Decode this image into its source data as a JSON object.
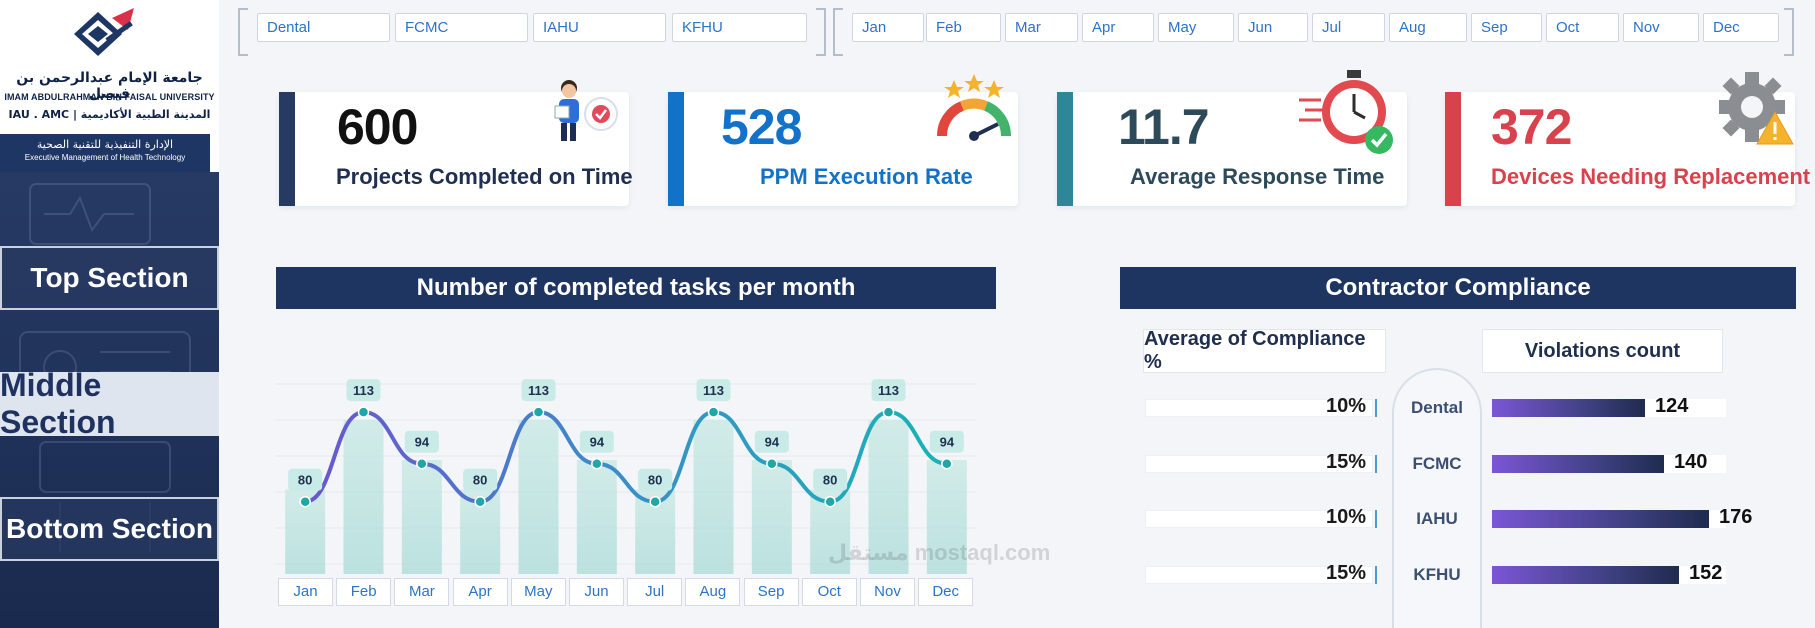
{
  "logo": {
    "arabic_name": "جامعة الإمام عبدالرحمن بن فيصل",
    "english_name": "IMAM ABDULRAHMAN BIN FAISAL UNIVERSITY",
    "sub_line": "IAU . AMC | المدينة الطبية الأكاديمية",
    "band_arabic": "الإدارة التنفيذية للتقنية الصحية",
    "band_english": "Executive Management of Health Technology"
  },
  "nav": {
    "top": "Top Section",
    "middle": "Middle Section",
    "bottom": "Bottom Section"
  },
  "site_slicer": [
    "Dental",
    "FCMC",
    "IAHU",
    "KFHU"
  ],
  "month_slicer": [
    "Jan",
    "Feb",
    "Mar",
    "Apr",
    "May",
    "Jun",
    "Jul",
    "Aug",
    "Sep",
    "Oct",
    "Nov",
    "Dec"
  ],
  "kpis": [
    {
      "value": "600",
      "label": "Projects Completed on Time",
      "color": "#273a62",
      "icon": "person-timer-icon"
    },
    {
      "value": "528",
      "label": "PPM Execution Rate",
      "color": "#1272c7",
      "icon": "gauge-rating-icon"
    },
    {
      "value": "11.7",
      "label": "Average Response Time",
      "color": "#2f8696",
      "icon": "stopwatch-check-icon"
    },
    {
      "value": "372",
      "label": "Devices Needing Replacement",
      "color": "#d8424d",
      "icon": "gear-warning-icon"
    }
  ],
  "tasks_panel": {
    "title": "Number of completed tasks per month"
  },
  "chart_data": {
    "type": "bar",
    "categories": [
      "Jan",
      "Feb",
      "Mar",
      "Apr",
      "May",
      "Jun",
      "Jul",
      "Aug",
      "Sep",
      "Oct",
      "Nov",
      "Dec"
    ],
    "values": [
      80,
      113,
      94,
      80,
      113,
      94,
      80,
      113,
      94,
      80,
      113,
      94
    ],
    "line_overlay": true,
    "title": "Number of completed tasks per month",
    "xlabel": "",
    "ylabel": "",
    "ylim": [
      0,
      130
    ],
    "grid": true
  },
  "compliance_panel": {
    "title": "Contractor Compliance",
    "avg_header": "Average of Compliance %",
    "violations_header": "Violations count",
    "rows": [
      {
        "site": "Dental",
        "compliance": "10%",
        "compliance_value": 10,
        "violations": 124
      },
      {
        "site": "FCMC",
        "compliance": "15%",
        "compliance_value": 15,
        "violations": 140
      },
      {
        "site": "IAHU",
        "compliance": "10%",
        "compliance_value": 10,
        "violations": 176
      },
      {
        "site": "KFHU",
        "compliance": "15%",
        "compliance_value": 15,
        "violations": 152
      }
    ],
    "violations_max": 190
  },
  "colors": {
    "navy": "#1d3560",
    "bar_fill": "#bfe4df",
    "line_start": "#6a56cf",
    "line_end": "#18b3b6",
    "label_bg": "#c9ebe8"
  },
  "watermark": "مستقل mostaql.com"
}
